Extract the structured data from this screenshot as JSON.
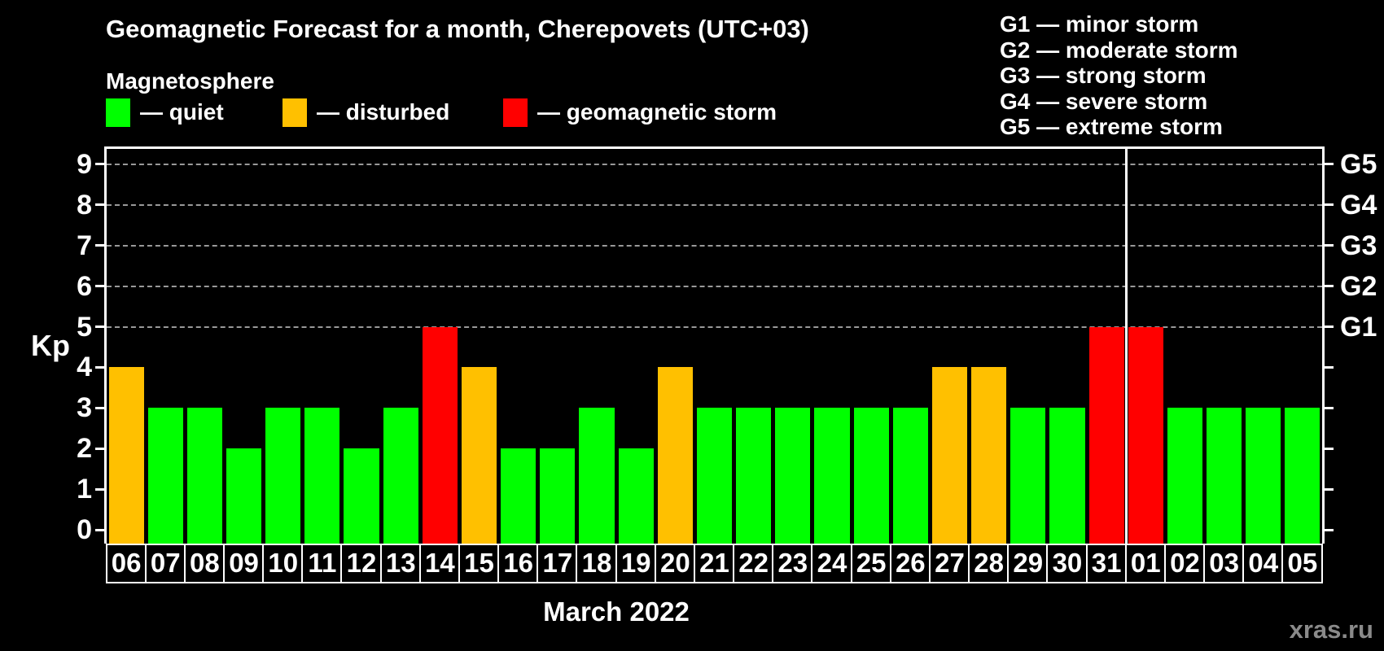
{
  "title": "Geomagnetic Forecast for a month, Cherepovets (UTC+03)",
  "subtitle": "Magnetosphere",
  "legend": {
    "items": [
      {
        "name": "quiet",
        "label": "— quiet",
        "color": "#00ff00"
      },
      {
        "name": "disturbed",
        "label": "— disturbed",
        "color": "#ffc000"
      },
      {
        "name": "geomagnetic-storm",
        "label": "— geomagnetic storm",
        "color": "#ff0000"
      }
    ]
  },
  "storm_scale_legend": [
    "G1 — minor storm",
    "G2 — moderate storm",
    "G3 — strong storm",
    "G4 — severe storm",
    "G5 — extreme storm"
  ],
  "y_axis": {
    "label": "Kp",
    "ticks": [
      0,
      1,
      2,
      3,
      4,
      5,
      6,
      7,
      8,
      9
    ]
  },
  "right_axis": {
    "labels": [
      {
        "kp": 5,
        "label": "G1"
      },
      {
        "kp": 6,
        "label": "G2"
      },
      {
        "kp": 7,
        "label": "G3"
      },
      {
        "kp": 8,
        "label": "G4"
      },
      {
        "kp": 9,
        "label": "G5"
      }
    ]
  },
  "x_axis": {
    "month_label": "March 2022"
  },
  "watermark": "xras.ru",
  "colors": {
    "quiet": "#00ff00",
    "disturbed": "#ffc000",
    "storm": "#ff0000",
    "grid": "#999999",
    "watermark": "#8a8a8a"
  },
  "chart_data": {
    "type": "bar",
    "title": "Geomagnetic Forecast for a month, Cherepovets (UTC+03)",
    "ylabel": "Kp",
    "ylim": [
      0,
      9
    ],
    "grid_dashed_at": [
      5,
      6,
      7,
      8,
      9
    ],
    "legend_position": "top-left",
    "categories": [
      "06",
      "07",
      "08",
      "09",
      "10",
      "11",
      "12",
      "13",
      "14",
      "15",
      "16",
      "17",
      "18",
      "19",
      "20",
      "21",
      "22",
      "23",
      "24",
      "25",
      "26",
      "27",
      "28",
      "29",
      "30",
      "31",
      "01",
      "02",
      "03",
      "04",
      "05"
    ],
    "values": [
      4,
      3,
      3,
      2,
      3,
      3,
      2,
      3,
      5,
      4,
      2,
      2,
      3,
      2,
      4,
      3,
      3,
      3,
      3,
      3,
      3,
      4,
      4,
      3,
      3,
      5,
      5,
      3,
      3,
      3,
      3
    ],
    "statuses": [
      "disturbed",
      "quiet",
      "quiet",
      "quiet",
      "quiet",
      "quiet",
      "quiet",
      "quiet",
      "storm",
      "disturbed",
      "quiet",
      "quiet",
      "quiet",
      "quiet",
      "disturbed",
      "quiet",
      "quiet",
      "quiet",
      "quiet",
      "quiet",
      "quiet",
      "disturbed",
      "disturbed",
      "quiet",
      "quiet",
      "storm",
      "storm",
      "quiet",
      "quiet",
      "quiet",
      "quiet"
    ],
    "month_boundary_after_index": 25
  }
}
